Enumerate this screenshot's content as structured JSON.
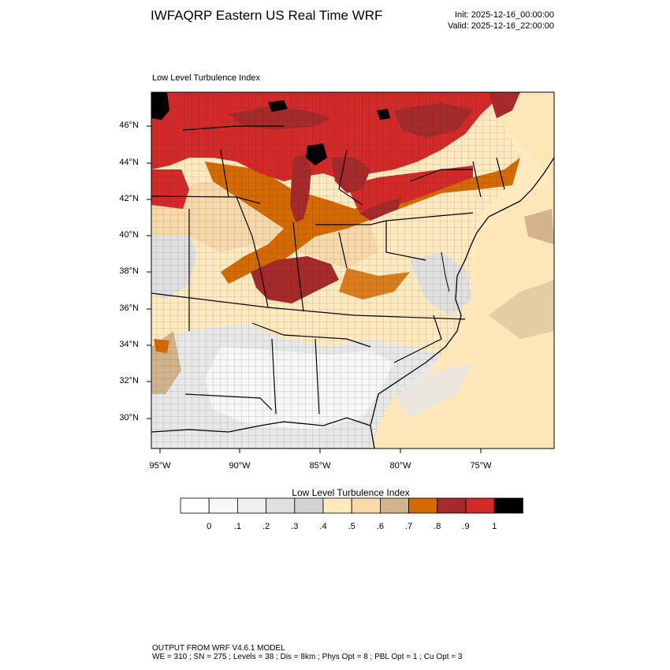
{
  "header": {
    "title": "IWFAQRP Eastern US Real Time WRF",
    "init": "Init: 2025-12-16_00:00:00",
    "valid": "Valid: 2025-12-16_22:00:00"
  },
  "map": {
    "subtitle": "Low Level Turbulence Index",
    "lat_labels": [
      "46°N",
      "44°N",
      "42°N",
      "40°N",
      "38°N",
      "36°N",
      "34°N",
      "32°N",
      "30°N"
    ],
    "lon_labels": [
      "95°W",
      "90°W",
      "85°W",
      "80°W",
      "75°W"
    ]
  },
  "colorbar": {
    "title": "Low Level Turbulence Index",
    "colors": [
      "#ffffff",
      "#f7f7f7",
      "#efefef",
      "#e0e0e0",
      "#d3d3d3",
      "#ffe9be",
      "#f8d9a9",
      "#d2b48c",
      "#d46a00",
      "#a62a2a",
      "#d42929",
      "#000000"
    ],
    "ticks": [
      "0",
      ".1",
      ".2",
      ".3",
      ".4",
      ".5",
      ".6",
      ".7",
      ".8",
      ".9",
      "1"
    ]
  },
  "footer": {
    "line1": "OUTPUT FROM WRF V4.6.1 MODEL",
    "line2": "WE = 310 ; SN = 275 ; Levels = 38 ; Dis = 8km ; Phys Opt = 8 ; PBL Opt = 1 ; Cu Opt = 3"
  }
}
